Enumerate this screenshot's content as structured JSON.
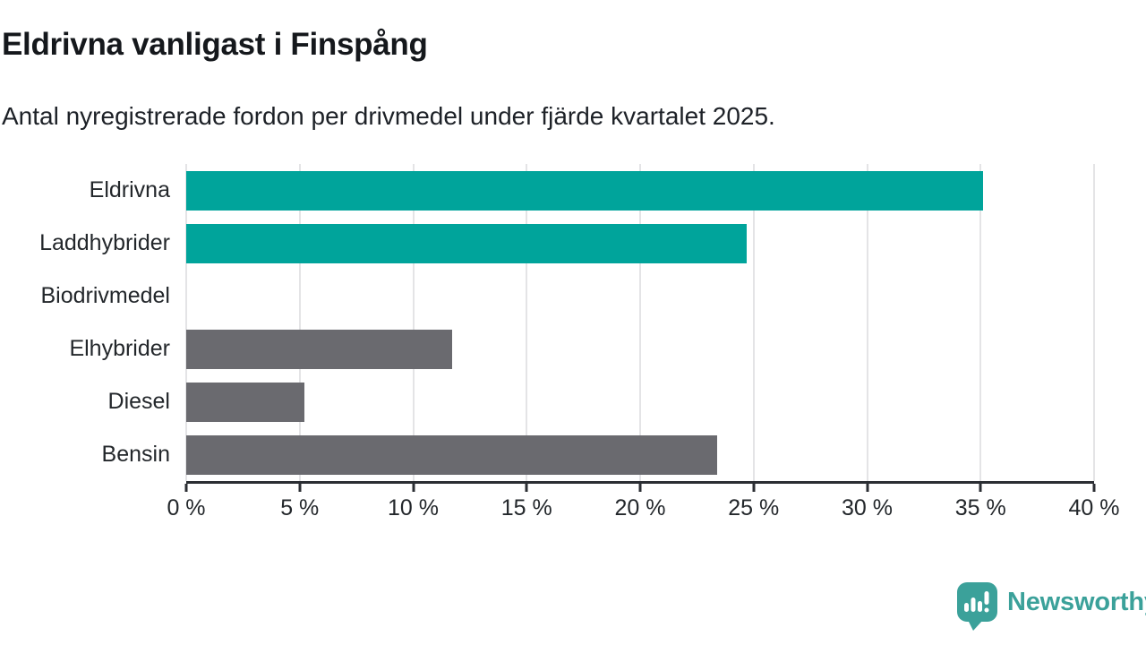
{
  "header": {
    "title": "Eldrivna vanligast i Finspång",
    "subtitle": "Antal nyregistrerade fordon per drivmedel under fjärde kvartalet 2025."
  },
  "chart_data": {
    "type": "bar",
    "orientation": "horizontal",
    "title": "Eldrivna vanligast i Finspång",
    "subtitle": "Antal nyregistrerade fordon per drivmedel under fjärde kvartalet 2025.",
    "categories": [
      "Eldrivna",
      "Laddhybrider",
      "Biodrivmedel",
      "Elhybrider",
      "Diesel",
      "Bensin"
    ],
    "values": [
      35.1,
      24.7,
      0,
      11.7,
      5.2,
      23.4
    ],
    "unit": "%",
    "xlabel": "",
    "ylabel": "",
    "xlim": [
      0,
      40
    ],
    "ticks": [
      0,
      5,
      10,
      15,
      20,
      25,
      30,
      35,
      40
    ],
    "tick_labels": [
      "0 %",
      "5 %",
      "10 %",
      "15 %",
      "20 %",
      "25 %",
      "30 %",
      "35 %",
      "40 %"
    ],
    "grid": true,
    "legend": "none",
    "bar_colors": [
      "#00a49b",
      "#00a49b",
      "#6a6a6f",
      "#6a6a6f",
      "#6a6a6f",
      "#6a6a6f"
    ],
    "colors": {
      "highlight": "#00a49b",
      "default": "#6a6a6f",
      "gridline": "#e4e4e6",
      "axis": "#2b2e33"
    }
  },
  "footer": {
    "brand": "Newsworthy",
    "brand_color": "#3ba19a",
    "logo_icon": "newsworthy-speech-bubble-bar-chart-icon"
  }
}
